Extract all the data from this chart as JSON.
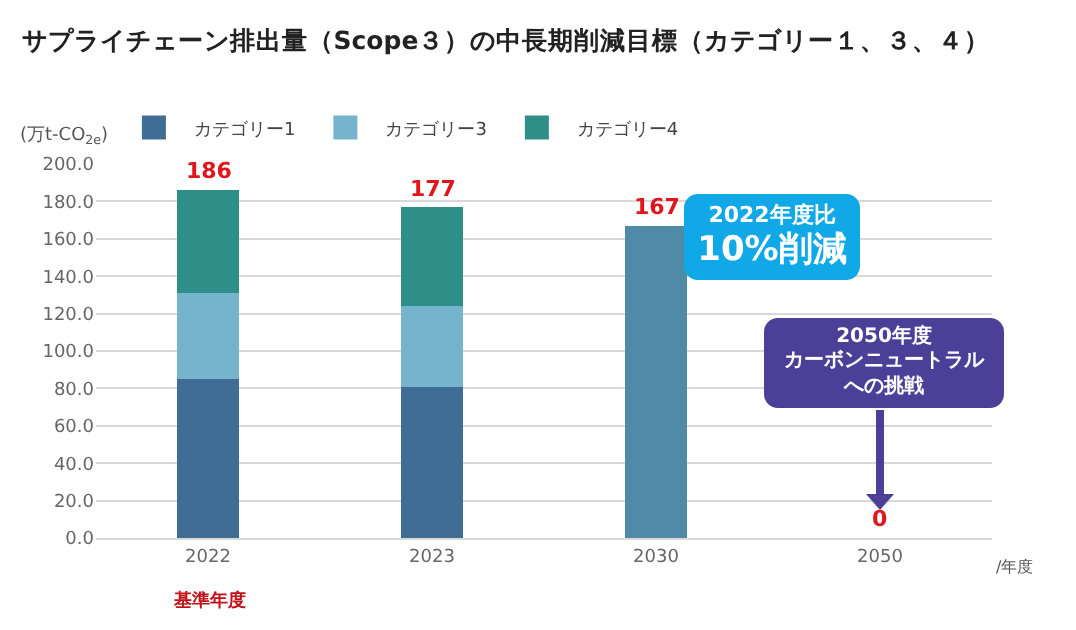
{
  "chart_data": {
    "type": "bar",
    "title": "サプライチェーン排出量（Scope３）の中長期削減目標（カテゴリー１、３、４）",
    "ylabel": "(万t-CO$_{2e}$)",
    "xlabel": "/年度",
    "categories": [
      "2022",
      "2023",
      "2030",
      "2050"
    ],
    "stacked": true,
    "series": [
      {
        "name": "カテゴリー1",
        "color": "#3f6d95",
        "values": [
          85,
          81,
          null,
          null
        ]
      },
      {
        "name": "カテゴリー3",
        "color": "#76b3cc",
        "values": [
          46,
          43,
          null,
          null
        ]
      },
      {
        "name": "カテゴリー4",
        "color": "#2e8f88",
        "values": [
          55,
          53,
          null,
          null
        ]
      },
      {
        "color": "#4f8aa6",
        "values": [
          null,
          null,
          167,
          0
        ]
      }
    ],
    "totals": [
      "186",
      "177",
      "167",
      "0"
    ],
    "ylim": [
      0,
      200
    ],
    "yticks": [
      {
        "value": 0,
        "label": "0.0"
      },
      {
        "value": 20,
        "label": "20.0"
      },
      {
        "value": 40,
        "label": "40.0"
      },
      {
        "value": 60,
        "label": "60.0"
      },
      {
        "value": 80,
        "label": "80.0"
      },
      {
        "value": 100,
        "label": "100.0"
      },
      {
        "value": 120,
        "label": "120.0"
      },
      {
        "value": 140,
        "label": "140.0"
      },
      {
        "value": 160,
        "label": "160.0"
      },
      {
        "value": 180,
        "label": "180.0"
      },
      {
        "value": 200,
        "label": "200.0"
      }
    ],
    "grid": "y",
    "legend": "top left",
    "annotations": [
      "基準年度",
      "2022年度比",
      "10%削減",
      "2050年度",
      "カーボンニュートラル",
      "への挑戦"
    ]
  }
}
